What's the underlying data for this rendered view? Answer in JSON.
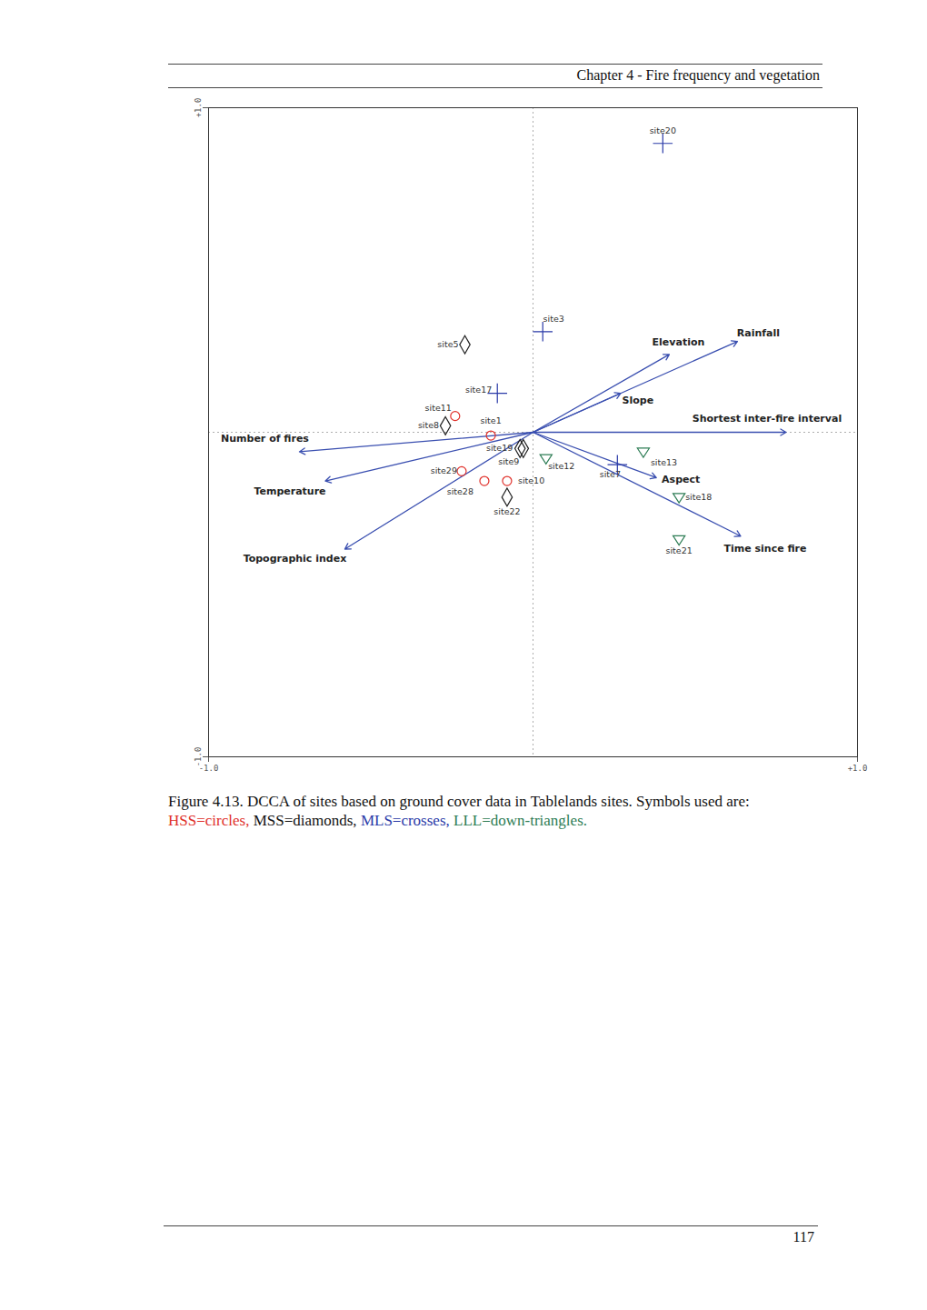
{
  "header": "Chapter 4 - Fire frequency and vegetation",
  "page_number": "117",
  "caption": {
    "text": "Figure 4.13. DCCA of sites based on ground cover data in Tablelands sites. Symbols used are:",
    "symbols": [
      "HSS=circles,",
      "MSS=diamonds,",
      "MLS=crosses,",
      "LLL=down-triangles."
    ]
  },
  "chart_data": {
    "type": "scatter",
    "xlim": [
      -1,
      1
    ],
    "ylim": [
      -1,
      1
    ],
    "xticks": [
      {
        "value": -1,
        "label": "-1.0"
      },
      {
        "value": 1,
        "label": "+1.0"
      }
    ],
    "yticks": [
      {
        "value": -1,
        "label": "-1.0"
      },
      {
        "value": 1,
        "label": "+1.0"
      }
    ],
    "grid": false,
    "series": [
      {
        "name": "HSS",
        "color": "#e0302a",
        "marker": "circle",
        "labels": [
          "site11",
          "site1",
          "site29",
          "site28",
          "site10"
        ],
        "x": [
          -0.24,
          -0.13,
          -0.22,
          -0.15,
          -0.08
        ],
        "y": [
          0.05,
          -0.01,
          -0.12,
          -0.15,
          -0.15
        ]
      },
      {
        "name": "MSS",
        "color": "#222222",
        "marker": "diamond",
        "labels": [
          "site5",
          "site8",
          "site19",
          "site9",
          "site22"
        ],
        "x": [
          -0.21,
          -0.27,
          -0.04,
          -0.03,
          -0.08
        ],
        "y": [
          0.27,
          0.02,
          -0.05,
          -0.05,
          -0.2
        ]
      },
      {
        "name": "MLS",
        "color": "#2a3aa8",
        "marker": "cross",
        "labels": [
          "site20",
          "site3",
          "site17",
          "site7"
        ],
        "x": [
          0.4,
          0.03,
          -0.11,
          0.26
        ],
        "y": [
          0.89,
          0.31,
          0.12,
          -0.1
        ]
      },
      {
        "name": "LLL",
        "color": "#2e7d55",
        "marker": "down-triangle",
        "labels": [
          "site12",
          "site13",
          "site18",
          "site21"
        ],
        "x": [
          0.04,
          0.34,
          0.45,
          0.45
        ],
        "y": [
          -0.08,
          -0.06,
          -0.2,
          -0.33
        ]
      }
    ],
    "arrows": {
      "color": "#3a4fb0",
      "labels": [
        "Number of fires",
        "Temperature",
        "Topographic index",
        "Elevation",
        "Rainfall",
        "Slope",
        "Shortest inter-fire interval",
        "Aspect",
        "Time since fire"
      ],
      "x": [
        -0.72,
        -0.64,
        -0.58,
        0.42,
        0.63,
        0.27,
        0.78,
        0.38,
        0.64
      ],
      "y": [
        -0.06,
        -0.15,
        -0.36,
        0.24,
        0.28,
        0.12,
        0.0,
        -0.14,
        -0.32
      ]
    }
  }
}
